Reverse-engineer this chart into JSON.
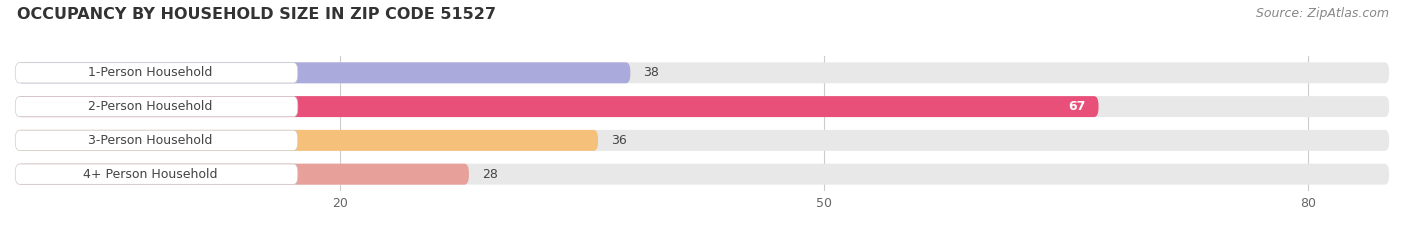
{
  "title": "OCCUPANCY BY HOUSEHOLD SIZE IN ZIP CODE 51527",
  "source": "Source: ZipAtlas.com",
  "categories": [
    "1-Person Household",
    "2-Person Household",
    "3-Person Household",
    "4+ Person Household"
  ],
  "values": [
    38,
    67,
    36,
    28
  ],
  "bar_colors": [
    "#aaaadd",
    "#e8507a",
    "#f5c07a",
    "#e8a09a"
  ],
  "label_colors": [
    "#333333",
    "#ffffff",
    "#333333",
    "#333333"
  ],
  "xlim": [
    0,
    85
  ],
  "xticks": [
    20,
    50,
    80
  ],
  "bg_color": "#ffffff",
  "bar_bg_color": "#e8e8e8",
  "title_fontsize": 11.5,
  "source_fontsize": 9,
  "label_fontsize": 9,
  "value_fontsize": 9,
  "bar_height": 0.62
}
